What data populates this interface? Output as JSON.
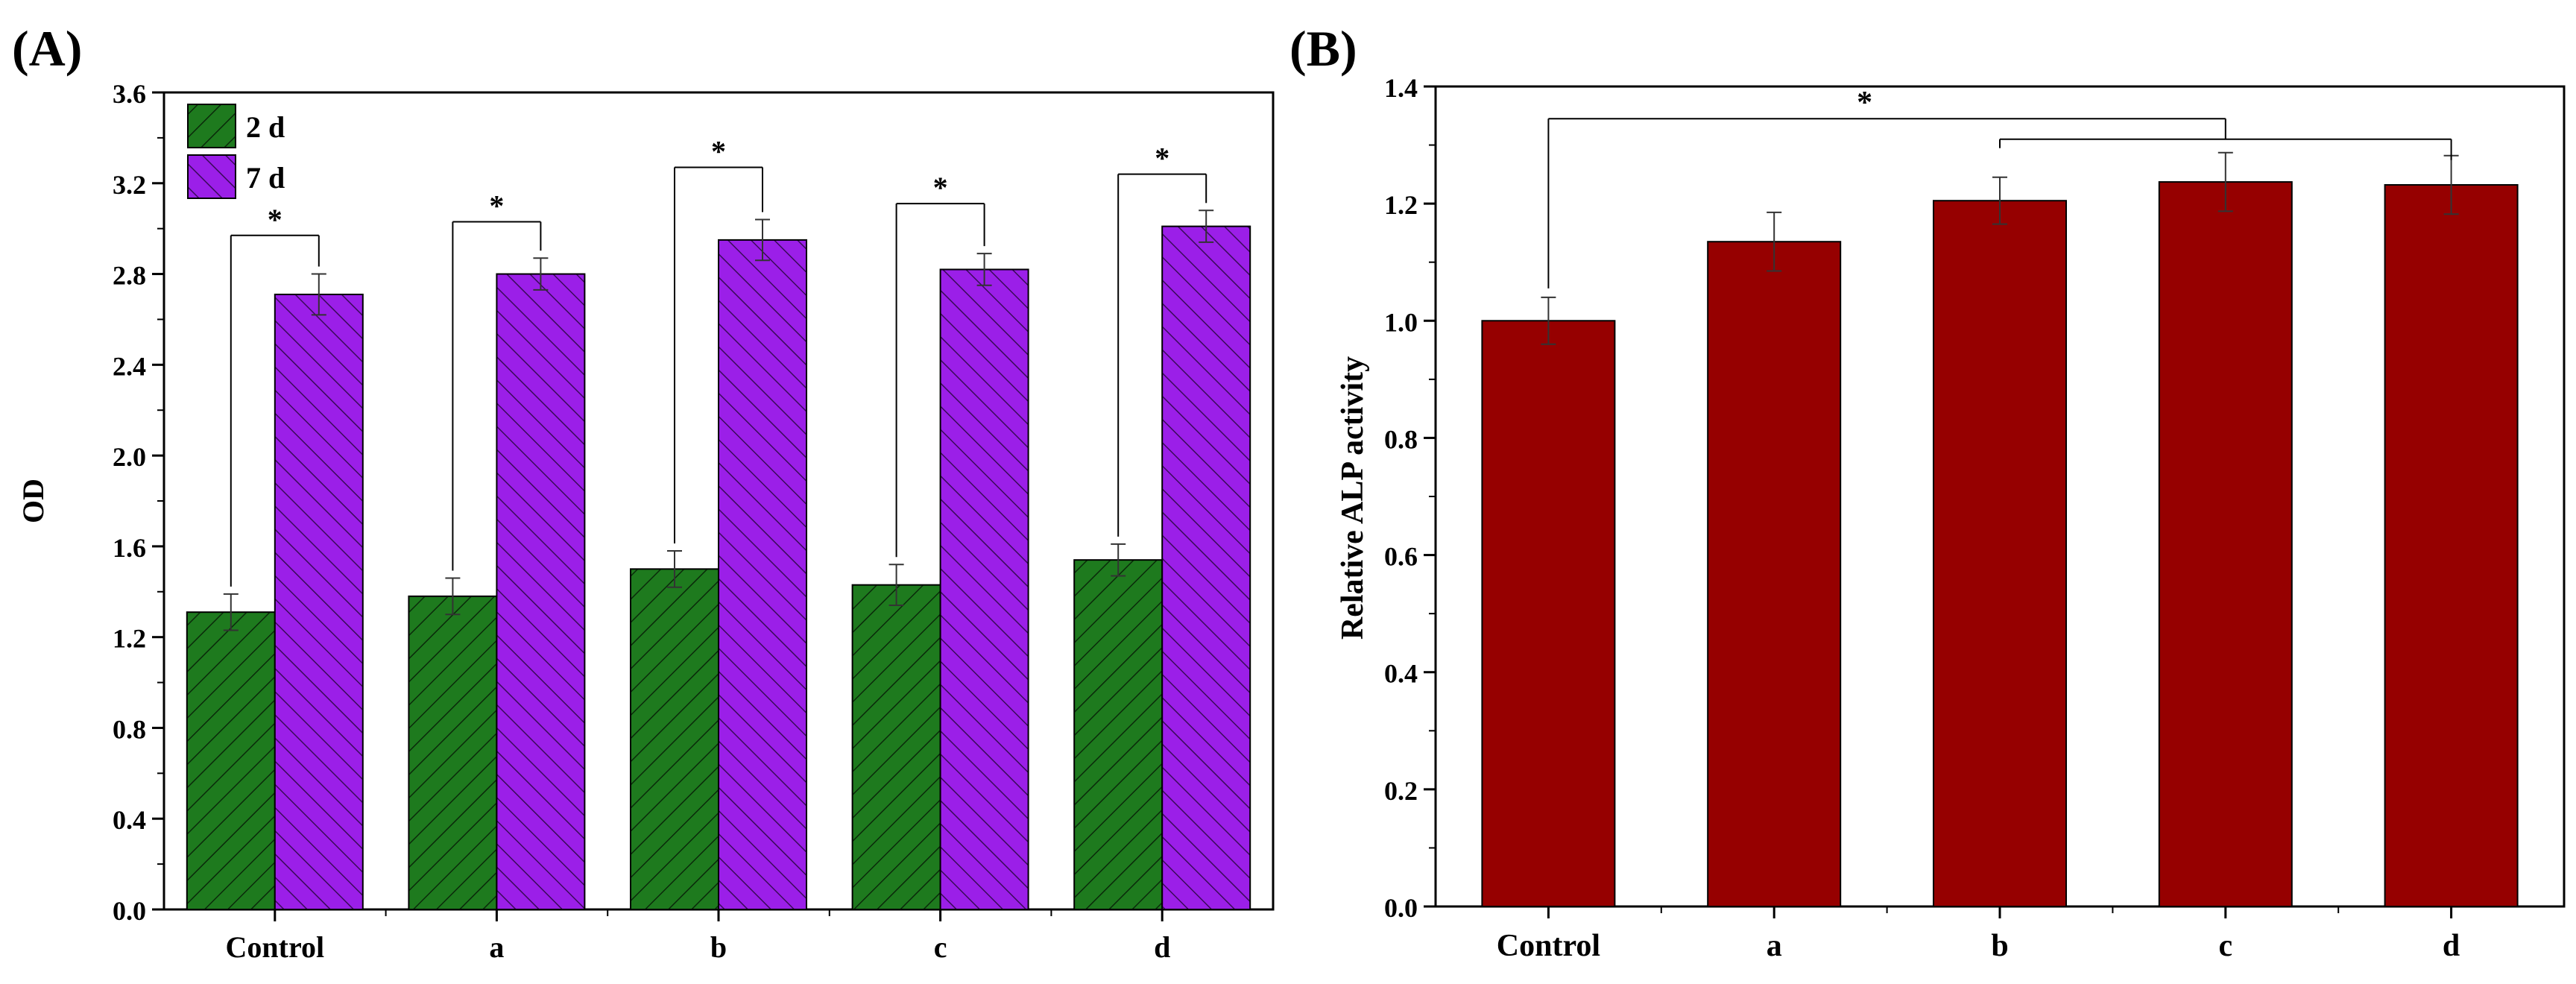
{
  "figure": {
    "panels": [
      "(A)",
      "(B)"
    ]
  },
  "chart_data": [
    {
      "panel": "(A)",
      "type": "bar",
      "title": "",
      "xlabel": "",
      "ylabel": "OD",
      "ylim": [
        0,
        3.6
      ],
      "yticks": [
        "0.0",
        "0.4",
        "0.8",
        "1.2",
        "1.6",
        "2.0",
        "2.4",
        "2.8",
        "3.2",
        "3.6"
      ],
      "categories": [
        "Control",
        "a",
        "b",
        "c",
        "d"
      ],
      "legend_position": "top-left",
      "series": [
        {
          "name": "2 d",
          "color": "#1e7a1e",
          "hatch": "forward-diagonal",
          "values": [
            1.31,
            1.38,
            1.5,
            1.43,
            1.54
          ],
          "errors": [
            0.08,
            0.08,
            0.08,
            0.09,
            0.07
          ]
        },
        {
          "name": "7 d",
          "color": "#9b1fe8",
          "hatch": "back-diagonal",
          "values": [
            2.71,
            2.8,
            2.95,
            2.82,
            3.01
          ],
          "errors": [
            0.09,
            0.07,
            0.09,
            0.07,
            0.07
          ]
        }
      ],
      "significance": [
        {
          "category": "Control",
          "label": "*",
          "y_level": 2.97
        },
        {
          "category": "a",
          "label": "*",
          "y_level": 3.03
        },
        {
          "category": "b",
          "label": "*",
          "y_level": 3.27
        },
        {
          "category": "c",
          "label": "*",
          "y_level": 3.11
        },
        {
          "category": "d",
          "label": "*",
          "y_level": 3.24
        }
      ]
    },
    {
      "panel": "(B)",
      "type": "bar",
      "title": "",
      "xlabel": "",
      "ylabel": "Relative ALP activity",
      "ylim": [
        0,
        1.4
      ],
      "yticks": [
        "0.0",
        "0.2",
        "0.4",
        "0.6",
        "0.8",
        "1.0",
        "1.2",
        "1.4"
      ],
      "categories": [
        "Control",
        "a",
        "b",
        "c",
        "d"
      ],
      "series": [
        {
          "name": "ALP",
          "color": "#960000",
          "values": [
            1.0,
            1.135,
            1.205,
            1.237,
            1.232
          ],
          "errors": [
            0.04,
            0.05,
            0.04,
            0.05,
            0.05
          ]
        }
      ],
      "significance": [
        {
          "label": "*",
          "from": "Control",
          "to": "c",
          "y_level": 1.345
        },
        {
          "label": "",
          "from": "b",
          "to": "d",
          "y_level": 1.31
        }
      ]
    }
  ]
}
